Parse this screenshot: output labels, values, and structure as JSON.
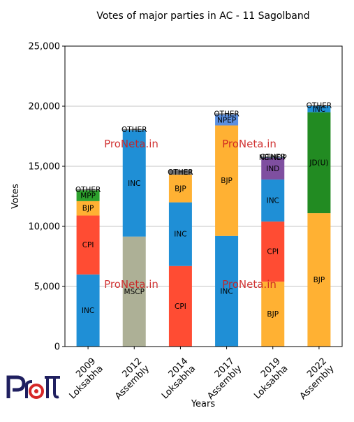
{
  "chart_data": {
    "type": "bar",
    "stacked": true,
    "title": "Votes of major parties in AC - 11 Sagolband",
    "xlabel": "Years",
    "ylabel": "Votes",
    "ylim": [
      0,
      25000
    ],
    "yticks": [
      0,
      5000,
      10000,
      15000,
      20000,
      25000
    ],
    "ytick_labels": [
      "0",
      "5,000",
      "10,000",
      "15,000",
      "20,000",
      "25,000"
    ],
    "grid": "horizontal",
    "categories": [
      "2009\nLoksabha",
      "2012\nAssembly",
      "2014\nLoksabha",
      "2017\nAssembly",
      "2019\nLoksabha",
      "2022\nAssembly"
    ],
    "stacks": [
      [
        {
          "party": "INC",
          "value": 6000,
          "color": "#1f8fd6"
        },
        {
          "party": "CPI",
          "value": 4900,
          "color": "#ff4c33"
        },
        {
          "party": "BJP",
          "value": 1200,
          "color": "#ffb133"
        },
        {
          "party": "MPP",
          "value": 900,
          "color": "#2ca02c"
        },
        {
          "party": "OTHER",
          "value": 100,
          "color": "#7f7f7f"
        }
      ],
      [
        {
          "party": "MSCP",
          "value": 9150,
          "color": "#adb096"
        },
        {
          "party": "INC",
          "value": 8850,
          "color": "#1f8fd6"
        },
        {
          "party": "OTHER",
          "value": 100,
          "color": "#7f7f7f"
        }
      ],
      [
        {
          "party": "CPI",
          "value": 6700,
          "color": "#ff4c33"
        },
        {
          "party": "INC",
          "value": 5300,
          "color": "#1f8fd6"
        },
        {
          "party": "BJP",
          "value": 2300,
          "color": "#ffb133"
        },
        {
          "party": "OTHER",
          "value": 400,
          "color": "#6d6d6d"
        }
      ],
      [
        {
          "party": "INC",
          "value": 9200,
          "color": "#1f8fd6"
        },
        {
          "party": "BJP",
          "value": 9200,
          "color": "#ffb133"
        },
        {
          "party": "NPEP",
          "value": 900,
          "color": "#5b8fe0"
        },
        {
          "party": "OTHER",
          "value": 100,
          "color": "#7f7f7f"
        }
      ],
      [
        {
          "party": "BJP",
          "value": 5400,
          "color": "#ffb133"
        },
        {
          "party": "CPI",
          "value": 5000,
          "color": "#ff4c33"
        },
        {
          "party": "INC",
          "value": 3500,
          "color": "#1f8fd6"
        },
        {
          "party": "IND",
          "value": 1800,
          "color": "#7f4fa0"
        },
        {
          "party": "NEINDP",
          "value": 50,
          "color": "#4f6fa0"
        },
        {
          "party": "OTHER",
          "value": 50,
          "color": "#7f7f7f"
        }
      ],
      [
        {
          "party": "BJP",
          "value": 11100,
          "color": "#ffb133"
        },
        {
          "party": "JD(U)",
          "value": 8400,
          "color": "#228b22"
        },
        {
          "party": "INC",
          "value": 500,
          "color": "#1f8fd6"
        },
        {
          "party": "OTHER",
          "value": 100,
          "color": "#7f7f7f"
        }
      ]
    ]
  },
  "watermark": {
    "text": "ProNeta.in",
    "color": "#cc1f1f"
  },
  "logo": {
    "text": "ProNeta",
    "color": "#1f1f5f",
    "accent": "#d62828"
  }
}
